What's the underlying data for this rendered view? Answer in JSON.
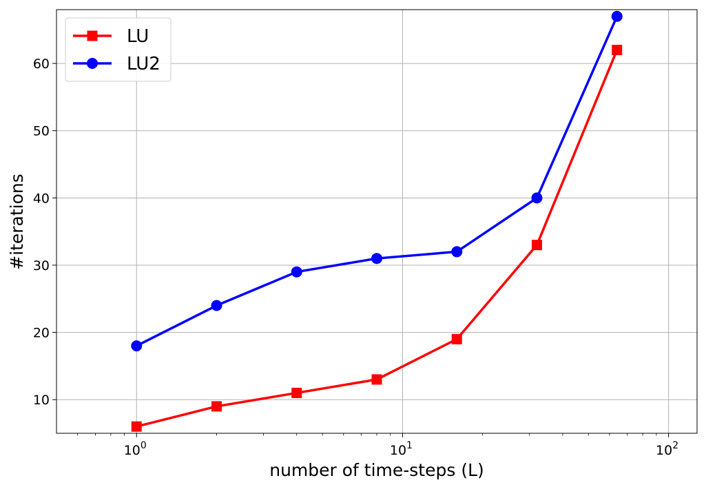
{
  "chart_data": {
    "type": "line",
    "title": "",
    "xlabel": "number of time-steps (L)",
    "ylabel": "#iterations",
    "x_scale": "log",
    "xlim": [
      0.5,
      128
    ],
    "ylim": [
      5,
      68
    ],
    "x_ticks": [
      1,
      10,
      100
    ],
    "x_tick_labels": [
      {
        "base": "10",
        "exp": "0"
      },
      {
        "base": "10",
        "exp": "1"
      },
      {
        "base": "10",
        "exp": "2"
      }
    ],
    "y_ticks": [
      10,
      20,
      30,
      40,
      50,
      60
    ],
    "y_tick_labels": [
      "10",
      "20",
      "30",
      "40",
      "50",
      "60"
    ],
    "grid": true,
    "legend_position": "top-left",
    "x": [
      1,
      2,
      4,
      8,
      16,
      32,
      64
    ],
    "series": [
      {
        "name": "LU",
        "values": [
          6,
          9,
          11,
          13,
          19,
          33,
          62
        ],
        "color": "#ff0000",
        "marker": "square"
      },
      {
        "name": "LU2",
        "values": [
          18,
          24,
          29,
          31,
          32,
          40,
          67
        ],
        "color": "#0000ff",
        "marker": "circle"
      }
    ]
  }
}
